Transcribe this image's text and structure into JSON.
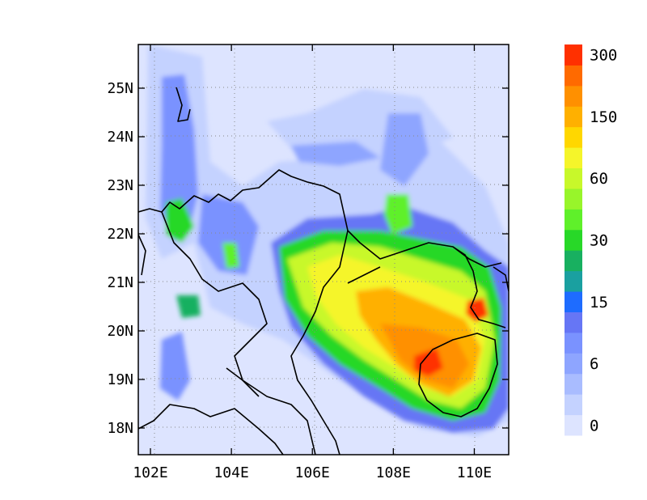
{
  "map": {
    "lon_range": [
      101.7,
      110.85
    ],
    "lat_range": [
      17.45,
      25.9
    ],
    "lon_ticks": [
      "102E",
      "104E",
      "106E",
      "108E",
      "110E"
    ],
    "lon_tick_values": [
      102,
      104,
      106,
      108,
      110
    ],
    "lat_ticks": [
      "18N",
      "19N",
      "20N",
      "21N",
      "22N",
      "23N",
      "24N",
      "25N"
    ],
    "lat_tick_values": [
      18,
      19,
      20,
      21,
      22,
      23,
      24,
      25
    ],
    "grid": "dotted",
    "field_type": "filled-contour"
  },
  "colorbar": {
    "colors": [
      "#dde4ff",
      "#c4d2ff",
      "#a9bcff",
      "#8ea5ff",
      "#7a92ff",
      "#6676f5",
      "#1e6cff",
      "#1aa0a0",
      "#18b060",
      "#28d828",
      "#5ff02a",
      "#98f52a",
      "#c8f82a",
      "#f5f52a",
      "#ffd700",
      "#ffb000",
      "#ff9000",
      "#ff6a00",
      "#ff3000"
    ],
    "labels": [
      "0",
      "6",
      "15",
      "30",
      "60",
      "150",
      "300"
    ],
    "label_colors": [
      0,
      3,
      6,
      9,
      12,
      15,
      18
    ]
  }
}
